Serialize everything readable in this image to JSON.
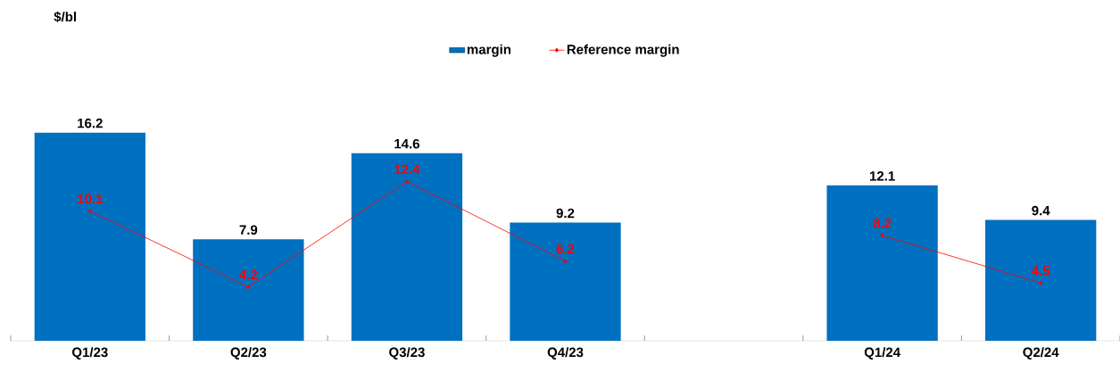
{
  "chart_data": {
    "type": "bar",
    "annotations": [
      "$/bl"
    ],
    "categories": [
      "Q1/23",
      "Q2/23",
      "Q3/23",
      "Q4/23",
      null,
      "Q1/24",
      "Q2/24"
    ],
    "series": [
      {
        "name": "margin",
        "color": "#0070c0",
        "values": [
          16.2,
          7.9,
          14.6,
          9.2,
          null,
          12.1,
          9.4
        ]
      },
      {
        "name": "Reference margin",
        "type": "line",
        "color": "#ff0000",
        "marker": "diamond",
        "values": [
          10.1,
          4.2,
          12.4,
          6.2,
          null,
          8.2,
          4.5
        ]
      }
    ],
    "data_labels": true,
    "legend": "top",
    "grid": false
  }
}
